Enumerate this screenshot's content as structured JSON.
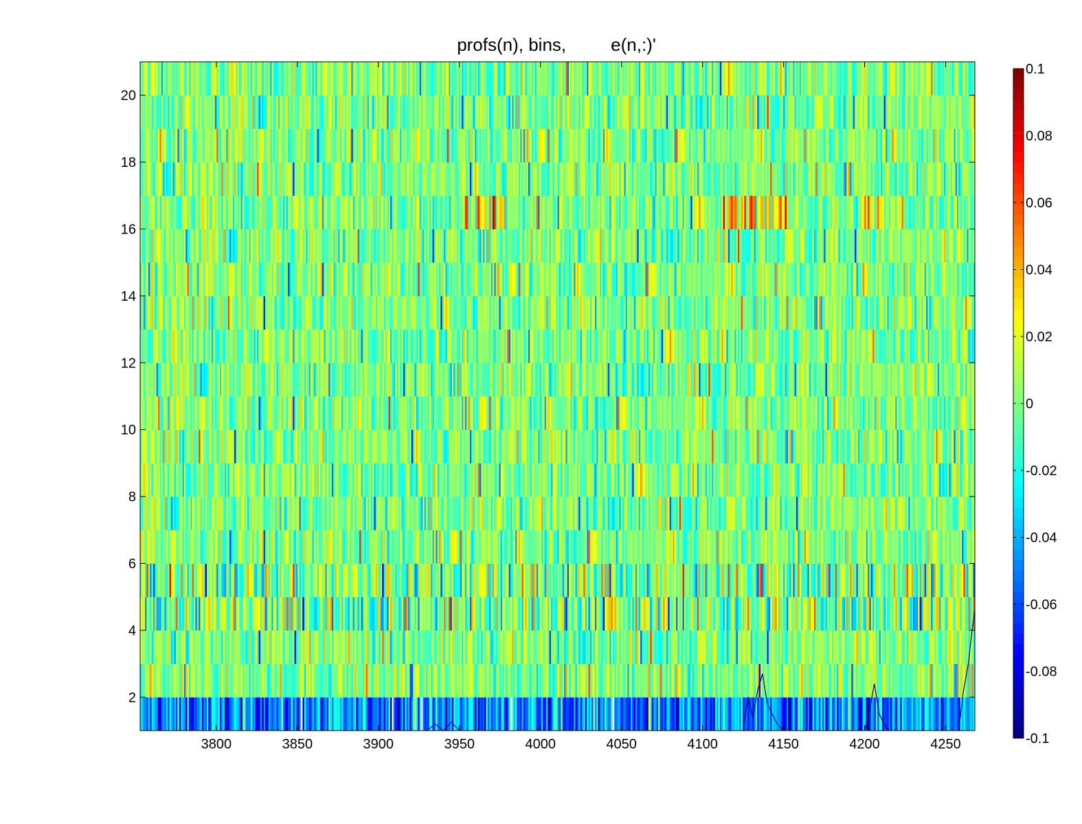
{
  "chart_data": {
    "type": "heatmap",
    "title": "profs(n), bins,         e(n,:)'",
    "xlabel": "",
    "ylabel": "",
    "xlim": [
      3753,
      4268
    ],
    "ylim": [
      1,
      21
    ],
    "rows": 20,
    "columns": 514,
    "x_ticks": [
      "3800",
      "3850",
      "3900",
      "3950",
      "4000",
      "4050",
      "4100",
      "4150",
      "4200",
      "4250"
    ],
    "y_ticks": [
      "2",
      "4",
      "6",
      "8",
      "10",
      "12",
      "14",
      "16",
      "18",
      "20"
    ],
    "colorbar": {
      "colormap": "jet",
      "clim": [
        -0.1,
        0.1
      ],
      "ticks": [
        "0.1",
        "0.08",
        "0.06",
        "0.04",
        "0.02",
        "0",
        "-0.02",
        "-0.04",
        "-0.06",
        "-0.08",
        "-0.1"
      ]
    },
    "value_summary": {
      "typical_range": [
        -0.03,
        0.03
      ],
      "row_1_mean": -0.05,
      "note_rows": {
        "1": "strongly negative (blue)",
        "4": "more extreme",
        "16": "positive streaks near x 3950-3975 and 4110-4150"
      }
    },
    "overlay_lines": [
      {
        "color": "#0000cc",
        "segments": [
          {
            "x": [
              3930,
              3935,
              3940,
              3945,
              3950
            ],
            "y": [
              1.0,
              1.2,
              1.0,
              1.25,
              1.0
            ]
          }
        ]
      },
      {
        "color": "#000080",
        "segments": [
          {
            "x": [
              4125,
              4128,
              4131,
              4134,
              4137,
              4140,
              4143,
              4146,
              4150
            ],
            "y": [
              1.0,
              2.0,
              1.4,
              2.2,
              2.7,
              1.8,
              1.5,
              1.2,
              1.0
            ]
          },
          {
            "x": [
              4200,
              4203,
              4206,
              4209,
              4212,
              4215
            ],
            "y": [
              1.0,
              1.6,
              2.4,
              1.5,
              1.2,
              1.0
            ]
          },
          {
            "x": [
              4258,
              4261,
              4264,
              4266,
              4268
            ],
            "y": [
              1.0,
              2.2,
              3.0,
              3.9,
              4.6
            ]
          }
        ]
      }
    ]
  }
}
